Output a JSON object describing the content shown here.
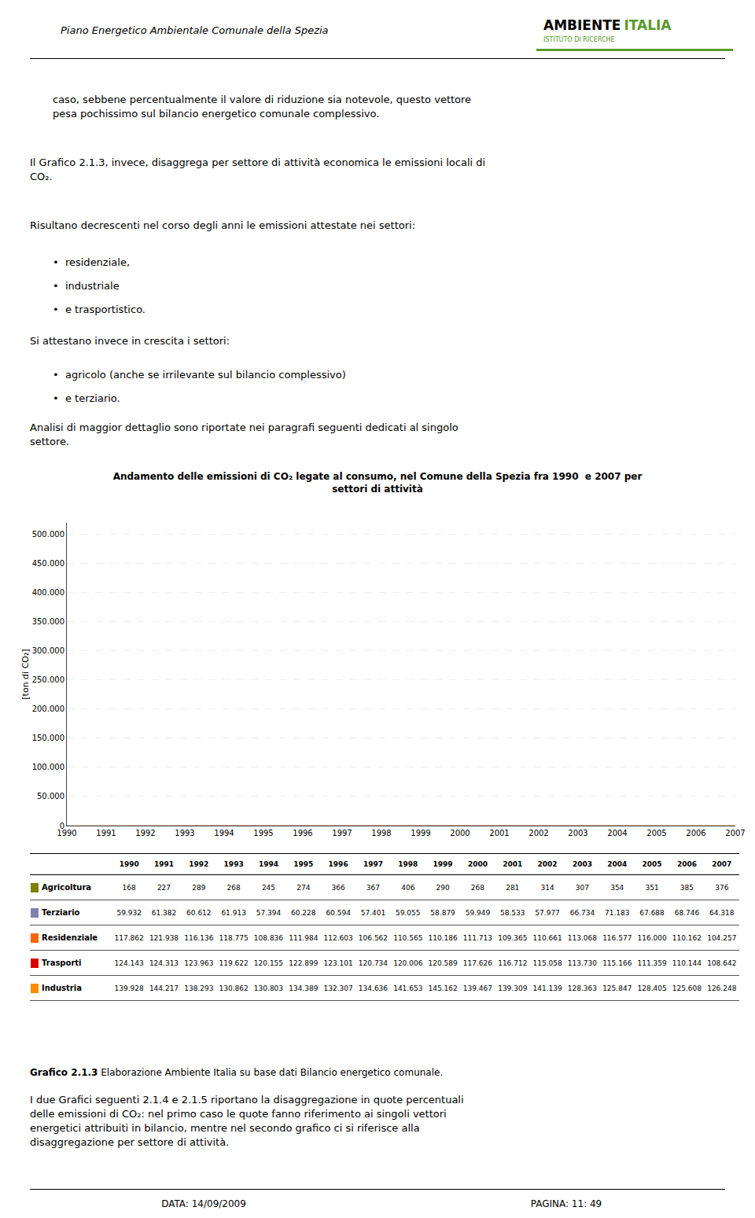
{
  "chart_data": {
    "type": "area",
    "title": "Andamento delle emissioni di CO₂ legate al consumo, nel Comune della Spezia fra 1990  e 2007 per\nsettori di attività",
    "ylabel": "[ton di CO₂]",
    "x": [
      1990,
      1991,
      1992,
      1993,
      1994,
      1995,
      1996,
      1997,
      1998,
      1999,
      2000,
      2001,
      2002,
      2003,
      2004,
      2005,
      2006,
      2007
    ],
    "series": [
      {
        "name": "Agricoltura",
        "color": "#808000",
        "values": [
          168,
          227,
          289,
          268,
          245,
          274,
          366,
          367,
          406,
          290,
          268,
          281,
          314,
          307,
          354,
          351,
          385,
          376
        ],
        "value_labels": [
          "168",
          "227",
          "289",
          "268",
          "245",
          "274",
          "366",
          "367",
          "406",
          "290",
          "268",
          "281",
          "314",
          "307",
          "354",
          "351",
          "385",
          "376"
        ]
      },
      {
        "name": "Terziario",
        "color": "#8080b0",
        "values": [
          59.932,
          61.382,
          60.612,
          61.913,
          57.394,
          60.228,
          60.594,
          57.401,
          59.055,
          58.879,
          59.949,
          58.533,
          57.977,
          66.734,
          71.183,
          67.688,
          68.746,
          64.318
        ],
        "value_labels": [
          "59.932",
          "61.382",
          "60.612",
          "61.913",
          "57.394",
          "60.228",
          "60.594",
          "57.401",
          "59.055",
          "58.879",
          "59.949",
          "58.533",
          "57.977",
          "66.734",
          "71.183",
          "67.688",
          "68.746",
          "64.318"
        ]
      },
      {
        "name": "Residenziale",
        "color": "#ff6600",
        "values": [
          117.862,
          121.938,
          116.136,
          118.775,
          108.836,
          111.984,
          112.603,
          106.562,
          110.565,
          110.186,
          111.713,
          109.365,
          110.661,
          113.068,
          116.577,
          116.0,
          110.162,
          104.257
        ],
        "value_labels": [
          "117.862",
          "121.938",
          "116.136",
          "118.775",
          "108.836",
          "111.984",
          "112.603",
          "106.562",
          "110.565",
          "110.186",
          "111.713",
          "109.365",
          "110.661",
          "113.068",
          "116.577",
          "116.000",
          "110.162",
          "104.257"
        ]
      },
      {
        "name": "Trasporti",
        "color": "#dd0000",
        "values": [
          124.143,
          124.313,
          123.963,
          119.622,
          120.155,
          122.899,
          123.101,
          120.734,
          120.006,
          120.589,
          117.626,
          116.712,
          115.058,
          113.73,
          115.166,
          111.359,
          110.144,
          108.642
        ],
        "value_labels": [
          "124.143",
          "124.313",
          "123.963",
          "119.622",
          "120.155",
          "122.899",
          "123.101",
          "120.734",
          "120.006",
          "120.589",
          "117.626",
          "116.712",
          "115.058",
          "113.730",
          "115.166",
          "111.359",
          "110.144",
          "108.642"
        ]
      },
      {
        "name": "Industria",
        "color": "#ff8c00",
        "values": [
          139.928,
          144.217,
          138.293,
          130.862,
          130.803,
          134.389,
          132.307,
          134.636,
          141.653,
          145.162,
          139.467,
          139.309,
          141.139,
          128.363,
          125.847,
          128.405,
          125.608,
          126.248
        ],
        "value_labels": [
          "139.928",
          "144.217",
          "138.293",
          "130.862",
          "130.803",
          "134.389",
          "132.307",
          "134.636",
          "141.653",
          "145.162",
          "139.467",
          "139.309",
          "141.139",
          "128.363",
          "125.847",
          "128.405",
          "125.608",
          "126.248"
        ]
      }
    ],
    "stacked": true,
    "xlim": [
      1990,
      2007
    ],
    "xticks": [
      1990,
      1991,
      1992,
      1993,
      1994,
      1995,
      1996,
      1997,
      1998,
      1999,
      2000,
      2001,
      2002,
      2003,
      2004,
      2005,
      2006,
      2007
    ],
    "ylim": [
      0,
      520000
    ],
    "yticks": [
      0,
      {
        "value": 50000,
        "label": "50.000"
      },
      {
        "value": 100000,
        "label": "100.000"
      },
      {
        "value": 150000,
        "label": "150.000"
      },
      {
        "value": 200000,
        "label": "200.000"
      },
      {
        "value": 250000,
        "label": "250.000"
      },
      {
        "value": 300000,
        "label": "300.000"
      },
      {
        "value": 350000,
        "label": "350.000"
      },
      {
        "value": 400000,
        "label": "400.000"
      },
      {
        "value": 450000,
        "label": "450.000"
      },
      {
        "value": 500000,
        "label": "500.000"
      }
    ],
    "grid": "y",
    "annotations": [
      "Piano Energetico Ambientale Comunale della Spezia",
      "AMBIENTE",
      "ITALIA",
      "ISTITUTO DI RICERCHE",
      "caso, sebbene percentualmente il valore di riduzione sia notevole, questo vettore\npesa pochissimo sul bilancio energetico comunale complessivo.",
      "Il Grafico 2.1.3, invece, disaggrega per settore di attività economica le emissioni locali di\nCO₂.",
      "Risultano decrescenti nel corso degli anni le emissioni attestate nei settori:",
      "•  residenziale,",
      "•  industriale",
      "•  e trasportistico.",
      "Si attestano invece in crescita i settori:",
      "•  agricolo (anche se irrilevante sul bilancio complessivo)",
      "•  e terziario.",
      "Analisi di maggior dettaglio sono riportate nei paragrafi seguenti dedicati al singolo\nsettore.",
      "Grafico 2.1.3",
      " Elaborazione Ambiente Italia su base dati Bilancio energetico comunale.",
      "I due Grafici seguenti 2.1.4 e 2.1.5 riportano la disaggregazione in quote percentuali\ndelle emissioni di CO₂: nel primo caso le quote fanno riferimento ai singoli vettori\nenergetici attribuiti in bilancio, mentre nel secondo grafico ci si riferisce alla\ndisaggregazione per settore di attività.",
      "DATA: 14/09/2009",
      "PAGINA: 11: 49"
    ]
  }
}
